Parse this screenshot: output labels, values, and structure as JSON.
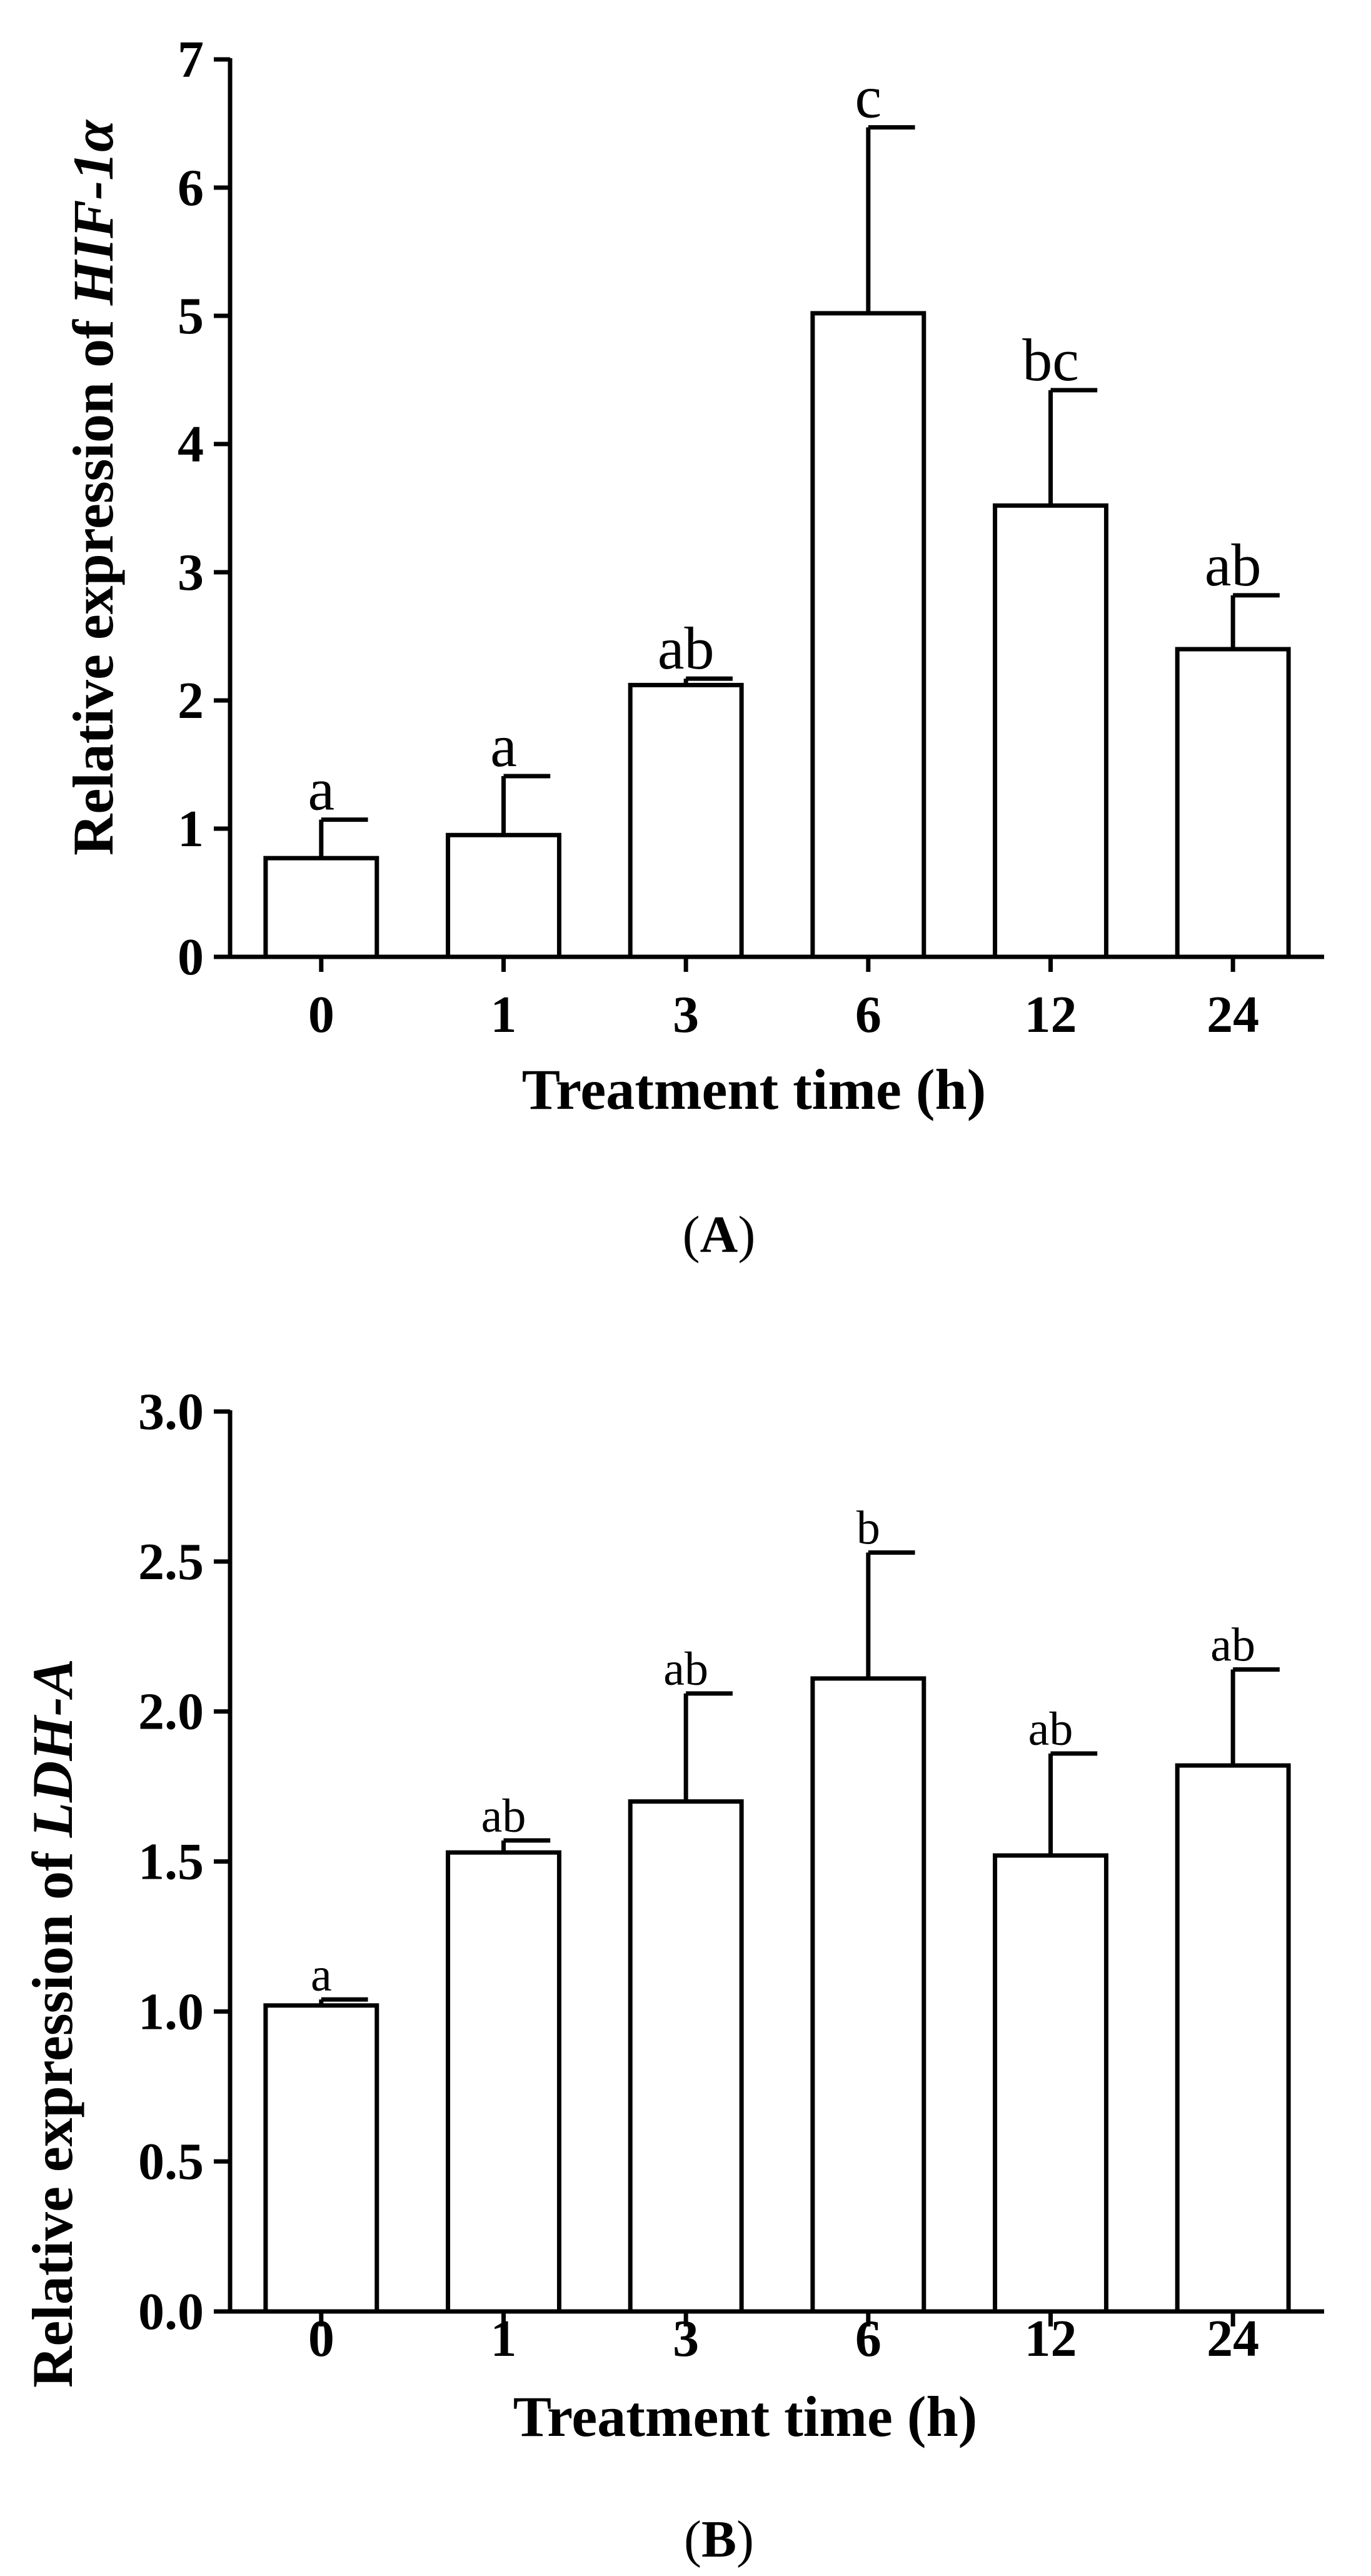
{
  "chart_data": [
    {
      "type": "bar",
      "panel": "A",
      "categories": [
        "0",
        "1",
        "3",
        "6",
        "12",
        "24"
      ],
      "values": [
        0.77,
        0.95,
        2.12,
        5.02,
        3.52,
        2.4
      ],
      "errors": [
        0.3,
        0.46,
        0.05,
        1.45,
        0.9,
        0.42
      ],
      "significance": [
        "a",
        "a",
        "ab",
        "c",
        "bc",
        "ab"
      ],
      "ylim": [
        0,
        7
      ],
      "yticks": [
        "0",
        "1",
        "2",
        "3",
        "4",
        "5",
        "6",
        "7"
      ],
      "ytick_values": [
        0,
        1,
        2,
        3,
        4,
        5,
        6,
        7
      ],
      "xlabel": "Treatment time (h)",
      "ylabel_prefix": "Relative expression of ",
      "ylabel_gene": "HIF-1α",
      "panel_label_open": "(",
      "panel_label_letter": "A",
      "panel_label_close": ")"
    },
    {
      "type": "bar",
      "panel": "B",
      "categories": [
        "0",
        "1",
        "3",
        "6",
        "12",
        "24"
      ],
      "values": [
        1.02,
        1.53,
        1.7,
        2.11,
        1.52,
        1.82
      ],
      "errors": [
        0.02,
        0.04,
        0.36,
        0.42,
        0.34,
        0.32
      ],
      "significance": [
        "a",
        "ab",
        "ab",
        "b",
        "ab",
        "ab"
      ],
      "ylim": [
        0,
        3
      ],
      "yticks": [
        "0.0",
        "0.5",
        "1.0",
        "1.5",
        "2.0",
        "2.5",
        "3.0"
      ],
      "ytick_values": [
        0,
        0.5,
        1.0,
        1.5,
        2.0,
        2.5,
        3.0
      ],
      "xlabel": "Treatment time (h)",
      "ylabel_prefix": "Relative expression of ",
      "ylabel_gene": "LDH-A",
      "panel_label_open": "(",
      "panel_label_letter": "B",
      "panel_label_close": ")"
    }
  ]
}
